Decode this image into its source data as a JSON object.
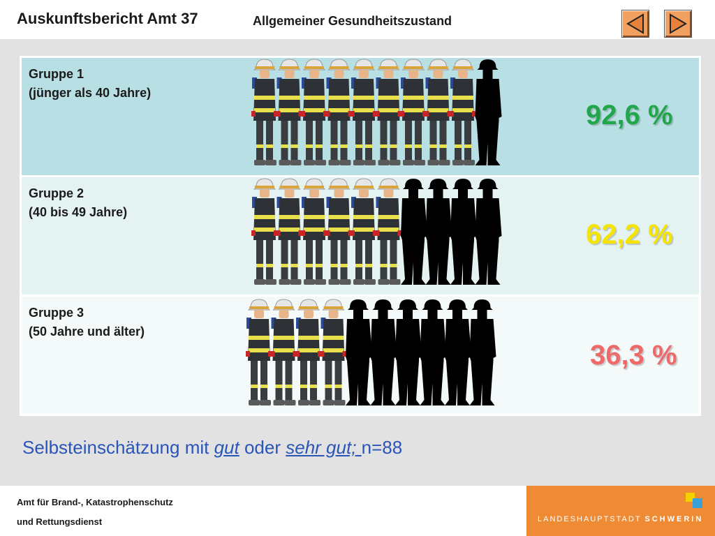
{
  "header": {
    "title": "Auskunftsbericht Amt 37",
    "subtitle": "Allgemeiner Gesundheitszustand",
    "prev_icon": "triangle-left-icon",
    "next_icon": "triangle-right-icon"
  },
  "chart_data": {
    "type": "pictograph",
    "total_figures_per_row": 10,
    "groups": [
      {
        "name_line1": "Gruppe 1",
        "name_line2": "(jünger als 40 Jahre)",
        "value": 92.6,
        "label": "92,6 %",
        "color": "#21a64b",
        "figures_good": 9,
        "figures_not_good": 1
      },
      {
        "name_line1": "Gruppe 2",
        "name_line2": "(40 bis 49 Jahre)",
        "value": 62.2,
        "label": "62,2 %",
        "color": "#f4e400",
        "figures_good": 6,
        "figures_not_good": 4
      },
      {
        "name_line1": "Gruppe 3",
        "name_line2": "(50 Jahre  und älter)",
        "value": 36.3,
        "label": "36,3 %",
        "color": "#ee6a6a",
        "figures_good": 4,
        "figures_not_good": 6
      }
    ]
  },
  "footnote": {
    "prefix": "Selbsteinschätzung mit ",
    "word1": "gut",
    "middle": " oder ",
    "word2": "sehr gut; ",
    "suffix": "n=88"
  },
  "footer": {
    "org_line1": "Amt für Brand-, Katastrophenschutz",
    "org_line2": "und  Rettungsdienst",
    "brand_prefix": "LANDESHAUPTSTADT ",
    "brand_name": "SCHWERIN",
    "brand_color": "#ef8b34"
  }
}
